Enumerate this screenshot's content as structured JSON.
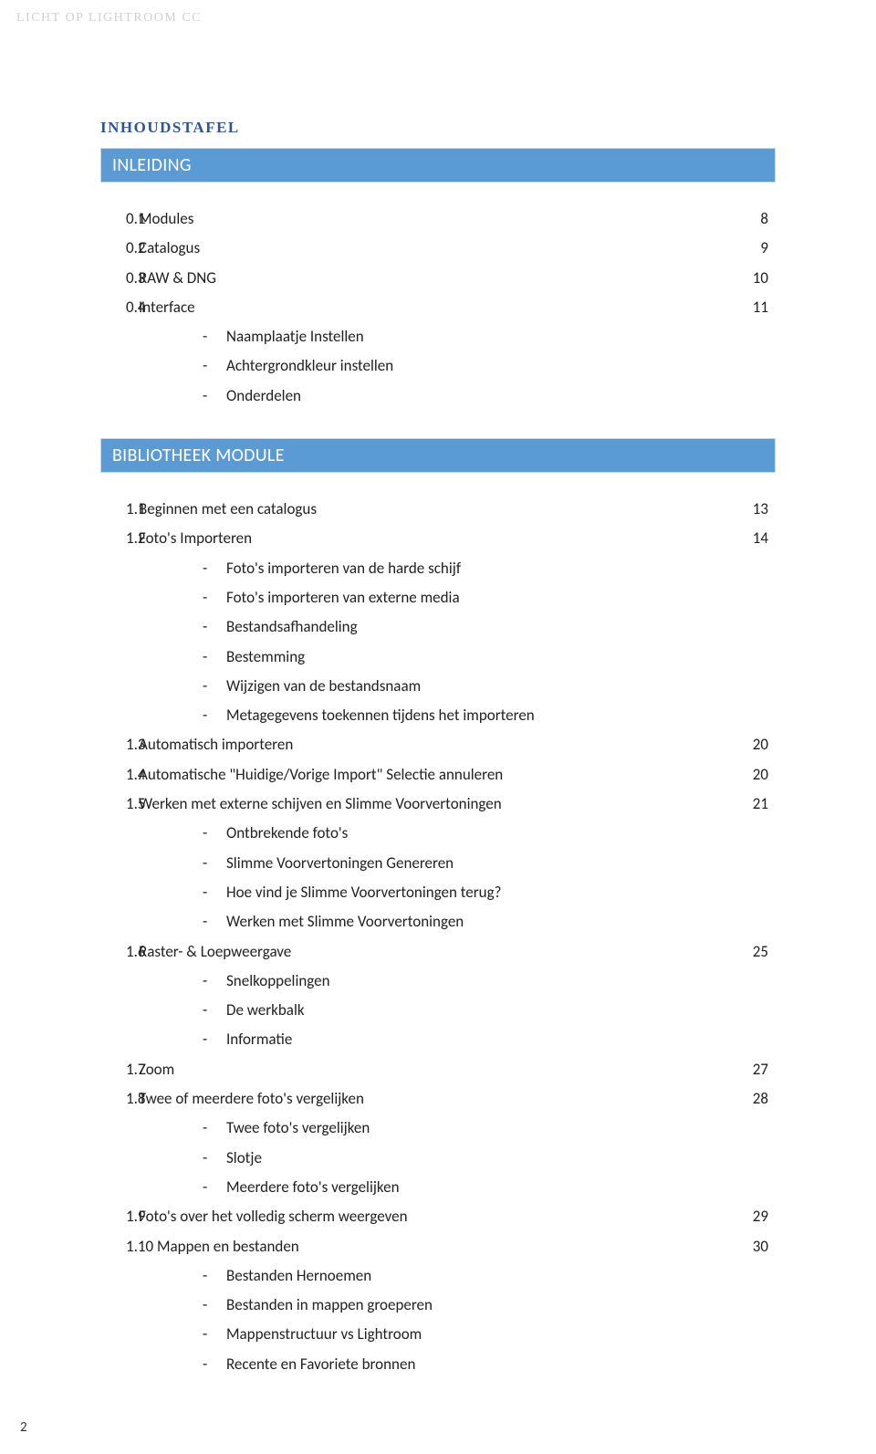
{
  "colors": {
    "blue_bar_bg": "#5b9bd5",
    "blue_bar_border": "#c8d6e5",
    "blue_bar_text": "#ffffff",
    "section_title": "#2f5496",
    "header_text": "#d0d0d0",
    "body_text": "#222222",
    "page_bg": "#ffffff"
  },
  "header": "LICHT OP LIGHTROOM CC",
  "section_title_main": "INHOUDSTAFEL",
  "bar1": "INLEIDING",
  "bar2": "BIBLIOTHEEK MODULE",
  "footer_page": "2",
  "intro": [
    {
      "num": "0.1",
      "label": "Modules",
      "page": "8",
      "subs": []
    },
    {
      "num": "0.2",
      "label": "Catalogus",
      "page": "9",
      "subs": []
    },
    {
      "num": "0.3",
      "label": "RAW & DNG",
      "page": "10",
      "subs": []
    },
    {
      "num": "0.4",
      "label": "Interface",
      "page": "11",
      "subs": [
        "Naamplaatje Instellen",
        "Achtergrondkleur instellen",
        "Onderdelen"
      ]
    }
  ],
  "biblio": [
    {
      "num": "1.1",
      "label": "Beginnen met een catalogus",
      "page": "13",
      "subs": []
    },
    {
      "num": "1.2",
      "label": "Foto's Importeren",
      "page": "14",
      "subs": [
        "Foto's importeren van de harde schijf",
        "Foto's importeren van externe media",
        "Bestandsafhandeling",
        "Bestemming",
        "Wijzigen van de bestandsnaam",
        "Metagegevens toekennen tijdens het importeren"
      ]
    },
    {
      "num": "1.3",
      "label": "Automatisch importeren",
      "page": "20",
      "subs": []
    },
    {
      "num": "1.4",
      "label": "Automatische \"Huidige/Vorige Import\" Selectie annuleren",
      "page": "20",
      "subs": []
    },
    {
      "num": "1.5",
      "label": "Werken met externe schijven en Slimme Voorvertoningen",
      "page": "21",
      "subs": [
        "Ontbrekende foto's",
        "Slimme Voorvertoningen Genereren",
        "Hoe vind je Slimme Voorvertoningen terug?",
        "Werken met Slimme Voorvertoningen"
      ]
    },
    {
      "num": "1.6",
      "label": "Raster- & Loepweergave",
      "page": "25",
      "subs": [
        "Snelkoppelingen",
        "De werkbalk",
        "Informatie"
      ]
    },
    {
      "num": "1.7",
      "label": "Zoom",
      "page": "27",
      "subs": []
    },
    {
      "num": "1.8",
      "label": "Twee of meerdere foto's vergelijken",
      "page": "28",
      "subs": [
        "Twee foto's vergelijken",
        "Slotje",
        "Meerdere foto's vergelijken"
      ]
    },
    {
      "num": "1.9",
      "label": "Foto's over het volledig scherm weergeven",
      "page": "29",
      "subs": []
    },
    {
      "num": "1.10",
      "label": "Mappen en bestanden",
      "page": "30",
      "label_prefix_merge": true,
      "subs": [
        "Bestanden Hernoemen",
        "Bestanden in mappen groeperen",
        "Mappenstructuur vs Lightroom",
        "Recente en Favoriete bronnen"
      ]
    }
  ]
}
